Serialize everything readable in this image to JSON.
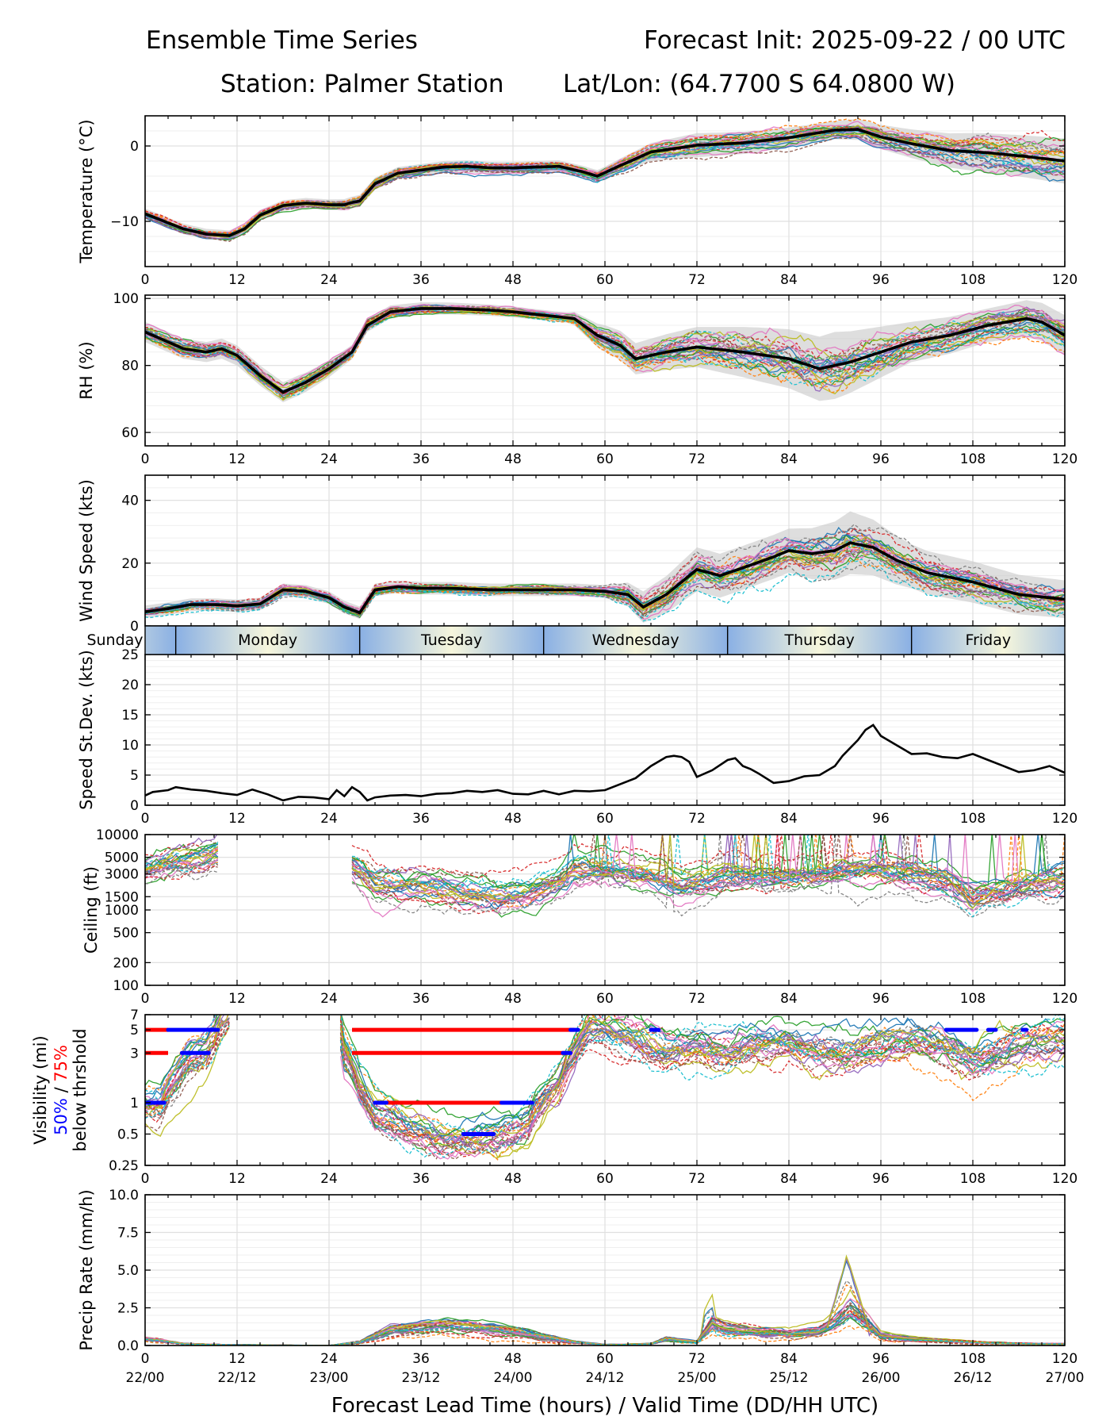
{
  "header": {
    "title": "Ensemble Time Series",
    "init": "Forecast Init: 2025-09-22 / 00 UTC",
    "station": "Station: Palmer Station",
    "latlon": "Lat/Lon: (64.7700 S 64.0800 W)"
  },
  "xaxis": {
    "title": "Forecast Lead Time (hours) / Valid Time (DD/HH UTC)",
    "hour_ticks": [
      "0",
      "12",
      "24",
      "36",
      "48",
      "60",
      "72",
      "84",
      "96",
      "108",
      "120"
    ],
    "valid_ticks": [
      "22/00",
      "22/12",
      "23/00",
      "23/12",
      "24/00",
      "24/12",
      "25/00",
      "25/12",
      "26/00",
      "26/12",
      "27/00"
    ]
  },
  "day_strip": {
    "days": [
      "Sunday",
      "Monday",
      "Tuesday",
      "Wednesday",
      "Thursday",
      "Friday"
    ],
    "day_boundaries_hours": [
      4,
      28,
      52,
      76,
      100
    ]
  },
  "threshold_legend": {
    "line1": "Visibility (mi)",
    "pct50": "50%",
    "sep": " / ",
    "pct75": "75%",
    "line3": "below thrshold",
    "color50": "#0000ff",
    "color75": "#ff0000"
  },
  "colors": {
    "members": [
      "#1f77b4",
      "#ff7f0e",
      "#2ca02c",
      "#d62728",
      "#9467bd",
      "#8c564b",
      "#e377c2",
      "#7f7f7f",
      "#bcbd22",
      "#17becf"
    ],
    "mean": "#000000",
    "band": "#c8c8c8",
    "grid": "#e0e0e0",
    "strip_dark": "#8ab0e4",
    "strip_light": "#f6f6dc"
  },
  "chart_data": [
    {
      "id": "temperature",
      "type": "line",
      "ylabel": "Temperature (°C)",
      "ylim": [
        -16,
        4
      ],
      "yticks": [
        -10,
        0
      ],
      "ytick_labels": [
        "−10",
        "0"
      ],
      "xlim": [
        0,
        120
      ],
      "n_members": 30,
      "mean": {
        "x": [
          0,
          2,
          5,
          8,
          11,
          13,
          15,
          18,
          21,
          24,
          26,
          27,
          28,
          30,
          33,
          36,
          39,
          42,
          45,
          48,
          51,
          54,
          57,
          59,
          62,
          66,
          72,
          78,
          84,
          90,
          93,
          96,
          100,
          105,
          110,
          115,
          120
        ],
        "y": [
          -9,
          -9.8,
          -11,
          -11.7,
          -11.9,
          -11,
          -9.2,
          -7.9,
          -7.6,
          -7.8,
          -7.8,
          -7.5,
          -7.3,
          -5,
          -3.6,
          -3.2,
          -2.8,
          -2.7,
          -2.9,
          -2.9,
          -2.8,
          -2.7,
          -3.4,
          -4,
          -2.6,
          -0.8,
          0.1,
          0.4,
          1.1,
          2.1,
          2.2,
          1.2,
          0.3,
          -0.6,
          -0.9,
          -1.4,
          -2
        ]
      },
      "spread": {
        "x": [
          0,
          24,
          28,
          60,
          72,
          90,
          96,
          108,
          120
        ],
        "y": [
          0.7,
          0.7,
          0.8,
          0.8,
          1.6,
          1.2,
          1.6,
          2.5,
          3.0
        ]
      }
    },
    {
      "id": "rh",
      "type": "line",
      "ylabel": "RH (%)",
      "ylim": [
        56,
        101
      ],
      "yticks": [
        60,
        80,
        100
      ],
      "ytick_labels": [
        "60",
        "80",
        "100"
      ],
      "xlim": [
        0,
        120
      ],
      "n_members": 30,
      "mean": {
        "x": [
          0,
          2,
          5,
          8,
          10,
          12,
          15,
          18,
          21,
          24,
          27,
          29,
          32,
          36,
          40,
          45,
          48,
          52,
          56,
          59,
          62,
          64,
          68,
          72,
          78,
          84,
          88,
          92,
          96,
          100,
          105,
          110,
          115,
          117,
          120
        ],
        "y": [
          90,
          88,
          85,
          84,
          85,
          83,
          77,
          72,
          75,
          79,
          84,
          92,
          96,
          97,
          97,
          96.5,
          96,
          95,
          94,
          89,
          86,
          82,
          84,
          85.5,
          84,
          82,
          79,
          81,
          84,
          87,
          89,
          92,
          94,
          93,
          89
        ]
      },
      "spread": {
        "x": [
          0,
          20,
          28,
          55,
          60,
          72,
          80,
          90,
          100,
          110,
          120
        ],
        "y": [
          3,
          3,
          2,
          1.5,
          4,
          6,
          8,
          10,
          6,
          5,
          6
        ]
      }
    },
    {
      "id": "wind",
      "type": "line",
      "ylabel": "Wind Speed (kts)",
      "ylim": [
        0,
        48
      ],
      "yticks": [
        0,
        20,
        40
      ],
      "ytick_labels": [
        "0",
        "20",
        "40"
      ],
      "xlim": [
        0,
        120
      ],
      "n_members": 30,
      "mean": {
        "x": [
          0,
          3,
          6,
          9,
          12,
          15,
          18,
          21,
          24,
          26,
          28,
          30,
          33,
          36,
          40,
          45,
          48,
          52,
          56,
          60,
          63,
          65,
          68,
          70,
          72,
          75,
          78,
          82,
          84,
          87,
          90,
          92,
          95,
          98,
          102,
          108,
          114,
          120
        ],
        "y": [
          4.5,
          5.5,
          6.8,
          6.8,
          6.4,
          7,
          11.5,
          11,
          9,
          6,
          4.2,
          11.5,
          12.5,
          12,
          12,
          11.5,
          11.5,
          11.5,
          11.5,
          11,
          10,
          6,
          10,
          14,
          18,
          16,
          18.5,
          22,
          24,
          23,
          24,
          26.5,
          25,
          21,
          17,
          14,
          10,
          8.5
        ]
      },
      "spread": {
        "x": [
          0,
          30,
          60,
          65,
          72,
          84,
          92,
          100,
          120
        ],
        "y": [
          2,
          2,
          2,
          5,
          7,
          7,
          10,
          7,
          6
        ]
      }
    },
    {
      "id": "speed_sd",
      "type": "line",
      "ylabel": "Speed St.Dev. (kts)",
      "ylim": [
        0,
        25
      ],
      "yticks": [
        0,
        5,
        10,
        15,
        20,
        25
      ],
      "ytick_labels": [
        "0",
        "5",
        "10",
        "15",
        "20",
        "25"
      ],
      "xlim": [
        0,
        120
      ],
      "series": {
        "x": [
          0,
          1,
          3,
          4,
          6,
          8,
          10,
          12,
          14,
          16,
          18,
          20,
          22,
          24,
          25,
          26,
          27,
          28,
          29,
          30,
          32,
          34,
          36,
          38,
          40,
          42,
          44,
          46,
          48,
          50,
          52,
          54,
          56,
          58,
          60,
          62,
          64,
          66,
          68,
          69,
          70,
          71,
          72,
          74,
          76,
          77,
          78,
          79,
          80,
          82,
          84,
          86,
          88,
          90,
          91,
          92,
          93,
          94,
          95,
          96,
          98,
          100,
          102,
          104,
          106,
          108,
          110,
          112,
          114,
          116,
          118,
          120
        ],
        "y": [
          1.6,
          2.2,
          2.5,
          3.0,
          2.6,
          2.4,
          2.0,
          1.7,
          2.6,
          1.8,
          0.8,
          1.4,
          1.3,
          1.0,
          2.5,
          1.5,
          3.0,
          2.2,
          0.8,
          1.3,
          1.6,
          1.7,
          1.5,
          1.9,
          2.0,
          2.4,
          2.2,
          2.5,
          1.9,
          1.8,
          2.4,
          1.8,
          2.4,
          2.3,
          2.5,
          3.5,
          4.5,
          6.5,
          8.0,
          8.2,
          8.0,
          7.2,
          4.7,
          5.8,
          7.5,
          7.8,
          6.5,
          6.0,
          5.3,
          3.7,
          4.0,
          4.8,
          5.0,
          6.5,
          8.2,
          9.5,
          10.8,
          12.5,
          13.3,
          11.5,
          10.0,
          8.5,
          8.6,
          8.0,
          7.8,
          8.5,
          7.5,
          6.5,
          5.5,
          5.8,
          6.5,
          5.4
        ]
      }
    },
    {
      "id": "ceiling",
      "type": "line",
      "scale": "log",
      "ylabel": "Ceiling (ft)",
      "ylim": [
        100,
        10000
      ],
      "yticks": [
        100,
        200,
        500,
        1000,
        1500,
        3000,
        5000,
        10000
      ],
      "ytick_labels": [
        "100",
        "200",
        "500",
        "1000",
        "1500",
        "3000",
        "5000",
        "10000"
      ],
      "xlim": [
        0,
        120
      ],
      "n_members": 30,
      "segments_hours": [
        [
          0,
          9.5
        ],
        [
          27,
          120
        ]
      ],
      "center": {
        "x": [
          0,
          4,
          8,
          9.5,
          27,
          30,
          34,
          38,
          42,
          46,
          50,
          54,
          56,
          60,
          66,
          70,
          76,
          84,
          90,
          96,
          104,
          108,
          112,
          116,
          120
        ],
        "y": [
          3500,
          4500,
          5000,
          5500,
          4000,
          2200,
          2100,
          2000,
          1700,
          1500,
          1700,
          2400,
          3500,
          3500,
          3000,
          2200,
          3000,
          2800,
          3200,
          3500,
          2500,
          1500,
          1800,
          2200,
          2500
        ]
      }
    },
    {
      "id": "visibility",
      "type": "line",
      "scale": "log",
      "ylabel": "Visibility (mi)",
      "ylim": [
        0.25,
        7
      ],
      "yticks": [
        0.25,
        0.5,
        1,
        3,
        5,
        7
      ],
      "ytick_labels": [
        "0.25",
        "0.5",
        "1",
        "3",
        "5",
        "7"
      ],
      "xlim": [
        0,
        120
      ],
      "n_members": 30,
      "center": {
        "x": [
          0,
          2,
          4,
          6,
          8,
          9,
          10,
          11,
          25,
          26,
          28,
          30,
          34,
          38,
          42,
          46,
          50,
          54,
          56,
          58,
          60,
          64,
          68,
          72,
          76,
          80,
          84,
          88,
          92,
          96,
          100,
          104,
          108,
          112,
          116,
          120
        ],
        "y": [
          0.9,
          0.9,
          1.6,
          2.5,
          3.0,
          4,
          6,
          7,
          7,
          3,
          1.3,
          0.75,
          0.55,
          0.45,
          0.42,
          0.45,
          0.6,
          1.5,
          3,
          5,
          5,
          4,
          3,
          3.5,
          3,
          3.5,
          3.5,
          3,
          3,
          3.5,
          4,
          3.5,
          2.5,
          3,
          3.5,
          4
        ]
      },
      "thresholds_50pct": [
        {
          "y": 5,
          "x": [
            [
              3,
              9.5
            ],
            [
              55.5,
              56.5
            ],
            [
              66,
              67
            ],
            [
              104.5,
              108.5
            ],
            [
              110,
              111
            ],
            [
              114.5,
              115
            ]
          ]
        },
        {
          "y": 3,
          "x": [
            [
              4.8,
              8.3
            ],
            [
              54.5,
              55.5
            ]
          ]
        },
        {
          "y": 1,
          "x": [
            [
              0,
              2.5
            ],
            [
              30,
              31.5
            ],
            [
              46.5,
              50.5
            ]
          ]
        },
        {
          "y": 0.5,
          "x": [
            [
              41.5,
              45.5
            ]
          ]
        }
      ],
      "thresholds_75pct": [
        {
          "y": 5,
          "x": [
            [
              0,
              3
            ],
            [
              27,
              56
            ]
          ]
        },
        {
          "y": 3,
          "x": [
            [
              0,
              3
            ],
            [
              27,
              55
            ]
          ]
        },
        {
          "y": 1,
          "x": [
            [
              30,
              48
            ]
          ]
        }
      ]
    },
    {
      "id": "precip",
      "type": "line",
      "ylabel": "Precip Rate (mm/h)",
      "ylim": [
        0,
        10
      ],
      "yticks": [
        0,
        2.5,
        5,
        7.5,
        10
      ],
      "ytick_labels": [
        "0.0",
        "2.5",
        "5.0",
        "7.5",
        "10.0"
      ],
      "xlim": [
        0,
        120
      ],
      "n_members": 30,
      "center": {
        "x": [
          0,
          2,
          5,
          10,
          24,
          28,
          32,
          36,
          40,
          44,
          48,
          52,
          56,
          60,
          66,
          68,
          72,
          74,
          76,
          80,
          84,
          88,
          90,
          92,
          94,
          96,
          100,
          104,
          110,
          116,
          120
        ],
        "y": [
          0.4,
          0.3,
          0.1,
          0.05,
          0,
          0.2,
          0.9,
          1.1,
          1.2,
          1.1,
          0.9,
          0.5,
          0.2,
          0.05,
          0.1,
          0.4,
          0.2,
          1.3,
          1.0,
          0.8,
          0.7,
          0.9,
          1.4,
          2.2,
          1.5,
          0.6,
          0.4,
          0.3,
          0.15,
          0.1,
          0.1
        ]
      }
    }
  ]
}
